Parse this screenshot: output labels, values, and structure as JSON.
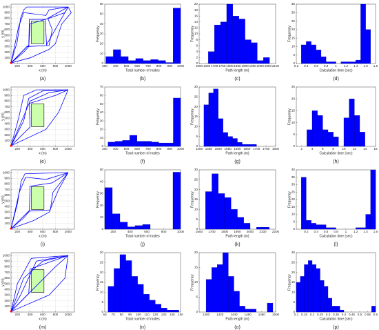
{
  "chart_data": [
    {
      "type": "path",
      "caption": "(a)",
      "xlabel": "x (m)",
      "ylabel": "y (m)",
      "xlim": [
        100,
        1100
      ],
      "ylim": [
        0,
        1050
      ],
      "xticks": [
        200,
        400,
        600,
        800,
        1000
      ],
      "yticks": [
        100,
        200,
        300,
        400,
        500,
        600,
        700,
        800,
        900,
        1000
      ],
      "grid": true,
      "color": "#0000ff",
      "obstacle": {
        "x": [
          420,
          620
        ],
        "y": [
          350,
          750
        ]
      },
      "start": {
        "x": 100,
        "y": 10
      },
      "paths": [
        {
          "x": [
            100,
            200,
            250,
            300,
            350,
            900,
            1000
          ],
          "y": [
            10,
            400,
            800,
            950,
            1000,
            1000,
            1000
          ]
        },
        {
          "x": [
            100,
            300,
            380,
            400,
            700,
            950,
            1000
          ],
          "y": [
            10,
            200,
            300,
            700,
            800,
            900,
            1000
          ]
        },
        {
          "x": [
            100,
            400,
            700,
            800,
            900,
            1050,
            1000
          ],
          "y": [
            10,
            100,
            250,
            350,
            700,
            900,
            1000
          ]
        },
        {
          "x": [
            100,
            220,
            300,
            650,
            700,
            1000
          ],
          "y": [
            10,
            650,
            900,
            850,
            950,
            1000
          ]
        },
        {
          "x": [
            100,
            350,
            700,
            750,
            680,
            1000
          ],
          "y": [
            10,
            300,
            320,
            600,
            800,
            1000
          ]
        },
        {
          "x": [
            100,
            380,
            390,
            640,
            660,
            1000
          ],
          "y": [
            10,
            330,
            780,
            780,
            330,
            1000
          ]
        }
      ]
    },
    {
      "type": "histogram",
      "caption": "(b)",
      "xlabel": "Total number of nodes",
      "ylabel": "Frequency",
      "xlim": [
        300,
        1000
      ],
      "ylim": [
        0,
        60
      ],
      "xticks": [
        300,
        400,
        500,
        600,
        700,
        800,
        900,
        1000
      ],
      "yticks": [
        0,
        10,
        20,
        30,
        40,
        50,
        60
      ],
      "color": "#0000ff",
      "bins": [
        310,
        379,
        448,
        517,
        586,
        655,
        724,
        793,
        862,
        931,
        1000
      ],
      "counts": [
        7,
        14,
        7,
        3,
        5,
        3,
        4,
        3,
        1,
        56
      ]
    },
    {
      "type": "histogram",
      "caption": "(c)",
      "xlabel": "Path length (m)",
      "ylabel": "Frequency",
      "xlim": [
        1600,
        2100
      ],
      "ylim": [
        0,
        20
      ],
      "xticks": [
        1600,
        1650,
        1700,
        1750,
        1800,
        1850,
        1900,
        1950,
        2000,
        2050,
        2100
      ],
      "yticks": [
        0,
        2,
        4,
        6,
        8,
        10,
        12,
        14,
        16,
        18,
        20
      ],
      "color": "#0000ff",
      "bins": [
        1660,
        1700,
        1740,
        1780,
        1820,
        1860,
        1900,
        1940,
        1980,
        2020,
        2060
      ],
      "counts": [
        4,
        13,
        14,
        20,
        16,
        15,
        8,
        7,
        1,
        2
      ]
    },
    {
      "type": "histogram",
      "caption": "(d)",
      "xlabel": "Calculation time (sec)",
      "ylabel": "Frequency",
      "xlim": [
        0.2,
        1.8
      ],
      "ylim": [
        0,
        35
      ],
      "xticks": [
        0.2,
        0.4,
        0.6,
        0.8,
        1,
        1.2,
        1.4,
        1.6,
        1.8
      ],
      "yticks": [
        0,
        5,
        10,
        15,
        20,
        25,
        30,
        35
      ],
      "color": "#0000ff",
      "bins": [
        0.3,
        0.4,
        0.5,
        0.6,
        0.7,
        0.8,
        0.9,
        1.0,
        1.1,
        1.2,
        1.3,
        1.4,
        1.5,
        1.6,
        1.7
      ],
      "counts": [
        11,
        13,
        11,
        8,
        4,
        1,
        1,
        0,
        1,
        1,
        1,
        2,
        35,
        20
      ]
    },
    {
      "type": "path",
      "caption": "(e)",
      "xlabel": "x (m)",
      "ylabel": "y (m)",
      "xlim": [
        100,
        1100
      ],
      "ylim": [
        0,
        1050
      ],
      "xticks": [
        200,
        400,
        600,
        800,
        1000
      ],
      "yticks": [
        100,
        200,
        300,
        400,
        500,
        600,
        700,
        800,
        900,
        1000
      ],
      "grid": true,
      "color": "#0000ff",
      "obstacle": {
        "x": [
          420,
          620
        ],
        "y": [
          350,
          750
        ]
      },
      "start": {
        "x": 100,
        "y": 10
      },
      "paths": [
        {
          "x": [
            100,
            250,
            400,
            700,
            1000
          ],
          "y": [
            10,
            400,
            800,
            950,
            1000
          ]
        },
        {
          "x": [
            100,
            300,
            380,
            600,
            1000
          ],
          "y": [
            10,
            450,
            850,
            980,
            1000
          ]
        },
        {
          "x": [
            100,
            220,
            300,
            500,
            1000
          ],
          "y": [
            10,
            500,
            900,
            1000,
            1000
          ]
        },
        {
          "x": [
            100,
            650,
            850,
            1000
          ],
          "y": [
            10,
            300,
            600,
            1000
          ]
        },
        {
          "x": [
            100,
            400,
            390,
            800,
            1000
          ],
          "y": [
            10,
            340,
            760,
            900,
            1000
          ]
        }
      ]
    },
    {
      "type": "histogram",
      "caption": "(f)",
      "xlabel": "Total number of nodes",
      "ylabel": "Frequency",
      "xlim": [
        300,
        1000
      ],
      "ylim": [
        0,
        70
      ],
      "xticks": [
        300,
        400,
        500,
        600,
        700,
        800,
        900,
        1000
      ],
      "yticks": [
        0,
        10,
        20,
        30,
        40,
        50,
        60,
        70
      ],
      "color": "#0000ff",
      "bins": [
        330,
        397,
        464,
        531,
        598,
        665,
        732,
        799,
        866,
        933,
        1000
      ],
      "counts": [
        5,
        6,
        7,
        13,
        6,
        6,
        5,
        4,
        4,
        57
      ]
    },
    {
      "type": "histogram",
      "caption": "(g)",
      "xlabel": "Path length (m)",
      "ylabel": "Frequency",
      "xlim": [
        1400,
        1800
      ],
      "ylim": [
        0,
        30
      ],
      "xticks": [
        1400,
        1450,
        1500,
        1550,
        1600,
        1650,
        1700,
        1750,
        1800
      ],
      "yticks": [
        0,
        5,
        10,
        15,
        20,
        25,
        30
      ],
      "color": "#0000ff",
      "bins": [
        1425,
        1450,
        1475,
        1500,
        1525,
        1550,
        1575,
        1600,
        1625,
        1650,
        1675,
        1700
      ],
      "counts": [
        21,
        27,
        29,
        14,
        7,
        5,
        4,
        2,
        1,
        1,
        1
      ]
    },
    {
      "type": "histogram",
      "caption": "(h)",
      "xlabel": "Calculation time (sec)",
      "ylabel": "Frequency",
      "xlim": [
        1,
        16
      ],
      "ylim": [
        0,
        25
      ],
      "xticks": [
        2,
        4,
        6,
        8,
        10,
        12,
        14,
        16
      ],
      "yticks": [
        0,
        5,
        10,
        15,
        20,
        25
      ],
      "color": "#0000ff",
      "bins": [
        3,
        4,
        5,
        6,
        7,
        8,
        9,
        10,
        11,
        12,
        13,
        14
      ],
      "counts": [
        7,
        15,
        13,
        7,
        6,
        4,
        0,
        12,
        20,
        13,
        6
      ]
    },
    {
      "type": "path",
      "caption": "(i)",
      "xlabel": "x (m)",
      "ylabel": "y (m)",
      "xlim": [
        100,
        1100
      ],
      "ylim": [
        0,
        1050
      ],
      "xticks": [
        200,
        400,
        600,
        800,
        1000
      ],
      "yticks": [
        100,
        200,
        300,
        400,
        500,
        600,
        700,
        800,
        900,
        1000
      ],
      "grid": true,
      "color": "#0000ff",
      "obstacle": {
        "x": [
          420,
          620
        ],
        "y": [
          350,
          750
        ]
      },
      "start": {
        "x": 100,
        "y": 10
      },
      "paths": [
        {
          "x": [
            100,
            200,
            260,
            320,
            900,
            1000
          ],
          "y": [
            10,
            450,
            850,
            980,
            1000,
            1000
          ]
        },
        {
          "x": [
            100,
            300,
            390,
            400,
            750,
            1000
          ],
          "y": [
            10,
            200,
            320,
            760,
            820,
            1000
          ]
        },
        {
          "x": [
            100,
            450,
            700,
            850,
            1000
          ],
          "y": [
            10,
            150,
            300,
            700,
            1000
          ]
        },
        {
          "x": [
            100,
            230,
            330,
            650,
            1000
          ],
          "y": [
            10,
            650,
            920,
            880,
            1000
          ]
        },
        {
          "x": [
            100,
            380,
            720,
            760,
            1000
          ],
          "y": [
            10,
            320,
            340,
            650,
            1000
          ]
        }
      ]
    },
    {
      "type": "histogram",
      "caption": "(j)",
      "xlabel": "Total number of nodes",
      "ylabel": "Frequency",
      "xlim": [
        100,
        1000
      ],
      "ylim": [
        0,
        50
      ],
      "xticks": [
        200,
        400,
        600,
        800,
        1000
      ],
      "yticks": [
        0,
        10,
        20,
        30,
        40,
        50
      ],
      "color": "#0000ff",
      "bins": [
        100,
        190,
        280,
        370,
        460,
        550,
        640,
        730,
        820,
        910,
        1000
      ],
      "counts": [
        35,
        13,
        6,
        2,
        3,
        4,
        0,
        0,
        0,
        48
      ]
    },
    {
      "type": "histogram",
      "caption": "(k)",
      "xlabel": "Path length (m)",
      "ylabel": "Frequency",
      "xlim": [
        1600,
        2200
      ],
      "ylim": [
        0,
        30
      ],
      "xticks": [
        1600,
        1700,
        1800,
        1900,
        2000,
        2100,
        2200
      ],
      "yticks": [
        0,
        5,
        10,
        15,
        20,
        25,
        30
      ],
      "color": "#0000ff",
      "bins": [
        1650,
        1700,
        1750,
        1800,
        1850,
        1900,
        1950,
        2000,
        2050,
        2100,
        2150
      ],
      "counts": [
        19,
        28,
        18,
        16,
        10,
        6,
        3,
        0,
        1,
        1
      ]
    },
    {
      "type": "histogram",
      "caption": "(l)",
      "xlabel": "Calculation time (sec)",
      "ylabel": "Frequency",
      "xlim": [
        0,
        1.6
      ],
      "ylim": [
        0,
        40
      ],
      "xticks": [
        0.2,
        0.4,
        0.6,
        0.8,
        1,
        1.2,
        1.4,
        1.6
      ],
      "yticks": [
        0,
        5,
        10,
        15,
        20,
        25,
        30,
        35,
        40
      ],
      "color": "#0000ff",
      "bins": [
        0.1,
        0.2,
        0.3,
        0.4,
        0.5,
        0.6,
        0.7,
        0.8,
        0.9,
        1.0,
        1.1,
        1.2,
        1.3,
        1.4,
        1.5,
        1.6
      ],
      "counts": [
        35,
        6,
        4,
        3,
        3,
        1,
        1,
        0,
        0,
        0,
        0,
        1,
        1,
        10,
        40
      ]
    },
    {
      "type": "path",
      "caption": "(m)",
      "xlabel": "x (m)",
      "ylabel": "y (m)",
      "xlim": [
        100,
        1100
      ],
      "ylim": [
        0,
        1050
      ],
      "xticks": [
        200,
        400,
        600,
        800,
        1000
      ],
      "yticks": [
        100,
        200,
        300,
        400,
        500,
        600,
        700,
        800,
        900,
        1000
      ],
      "grid": true,
      "color": "#0000ff",
      "obstacle": {
        "x": [
          420,
          620
        ],
        "y": [
          350,
          750
        ]
      },
      "start": {
        "x": 100,
        "y": 10
      },
      "paths": [
        {
          "x": [
            100,
            300,
            600,
            1000
          ],
          "y": [
            10,
            600,
            900,
            1000
          ]
        },
        {
          "x": [
            100,
            250,
            500,
            1000
          ],
          "y": [
            10,
            300,
            900,
            1000
          ]
        },
        {
          "x": [
            100,
            200,
            420,
            1000
          ],
          "y": [
            10,
            500,
            950,
            1000
          ]
        },
        {
          "x": [
            100,
            700,
            950,
            1000
          ],
          "y": [
            10,
            300,
            600,
            1000
          ]
        },
        {
          "x": [
            100,
            400,
            800,
            1000
          ],
          "y": [
            10,
            350,
            800,
            1000
          ]
        },
        {
          "x": [
            100,
            380,
            400,
            1000
          ],
          "y": [
            10,
            330,
            760,
            1000
          ]
        }
      ]
    },
    {
      "type": "histogram",
      "caption": "(n)",
      "xlabel": "Total number of nodes",
      "ylabel": "Frequency",
      "xlim": [
        60,
        150
      ],
      "ylim": [
        0,
        30
      ],
      "xticks": [
        60,
        70,
        80,
        90,
        100,
        110,
        120,
        130,
        140,
        150
      ],
      "yticks": [
        0,
        5,
        10,
        15,
        20,
        25,
        30
      ],
      "color": "#0000ff",
      "bins": [
        64,
        71,
        78,
        85,
        92,
        99,
        106,
        113,
        120,
        127,
        134,
        141,
        148
      ],
      "counts": [
        13,
        22,
        29,
        26,
        18,
        14,
        9,
        6,
        4,
        2,
        1,
        1
      ]
    },
    {
      "type": "histogram",
      "caption": "(o)",
      "xlabel": "Path length (m)",
      "ylabel": "Frequency",
      "xlim": [
        1390,
        1500
      ],
      "ylim": [
        0,
        20
      ],
      "xticks": [
        1400,
        1420,
        1440,
        1460,
        1480,
        1500
      ],
      "yticks": [
        0,
        5,
        10,
        15,
        20
      ],
      "color": "#0000ff",
      "bins": [
        1400,
        1408,
        1416,
        1424,
        1432,
        1440,
        1448,
        1456,
        1464,
        1472,
        1480,
        1488,
        1496
      ],
      "counts": [
        11,
        15,
        16,
        20,
        12,
        7,
        2,
        1,
        1,
        0,
        0,
        3
      ]
    },
    {
      "type": "histogram",
      "caption": "(p)",
      "xlabel": "Calculation time (sec)",
      "ylabel": "Frequency",
      "xlim": [
        0.1,
        0.6
      ],
      "ylim": [
        0,
        30
      ],
      "xticks": [
        0.1,
        0.15,
        0.2,
        0.25,
        0.3,
        0.35,
        0.4,
        0.45,
        0.5,
        0.55,
        0.6
      ],
      "yticks": [
        0,
        5,
        10,
        15,
        20,
        25,
        30
      ],
      "color": "#0000ff",
      "bins": [
        0.1,
        0.125,
        0.15,
        0.175,
        0.2,
        0.225,
        0.25,
        0.275,
        0.3,
        0.325,
        0.35,
        0.375,
        0.4,
        0.425,
        0.45,
        0.475,
        0.5,
        0.525,
        0.55,
        0.575,
        0.6
      ],
      "counts": [
        15,
        18,
        24,
        26,
        24,
        22,
        16,
        13,
        7,
        3,
        3,
        1,
        0,
        0,
        0,
        0,
        0,
        0,
        0,
        3
      ]
    }
  ]
}
